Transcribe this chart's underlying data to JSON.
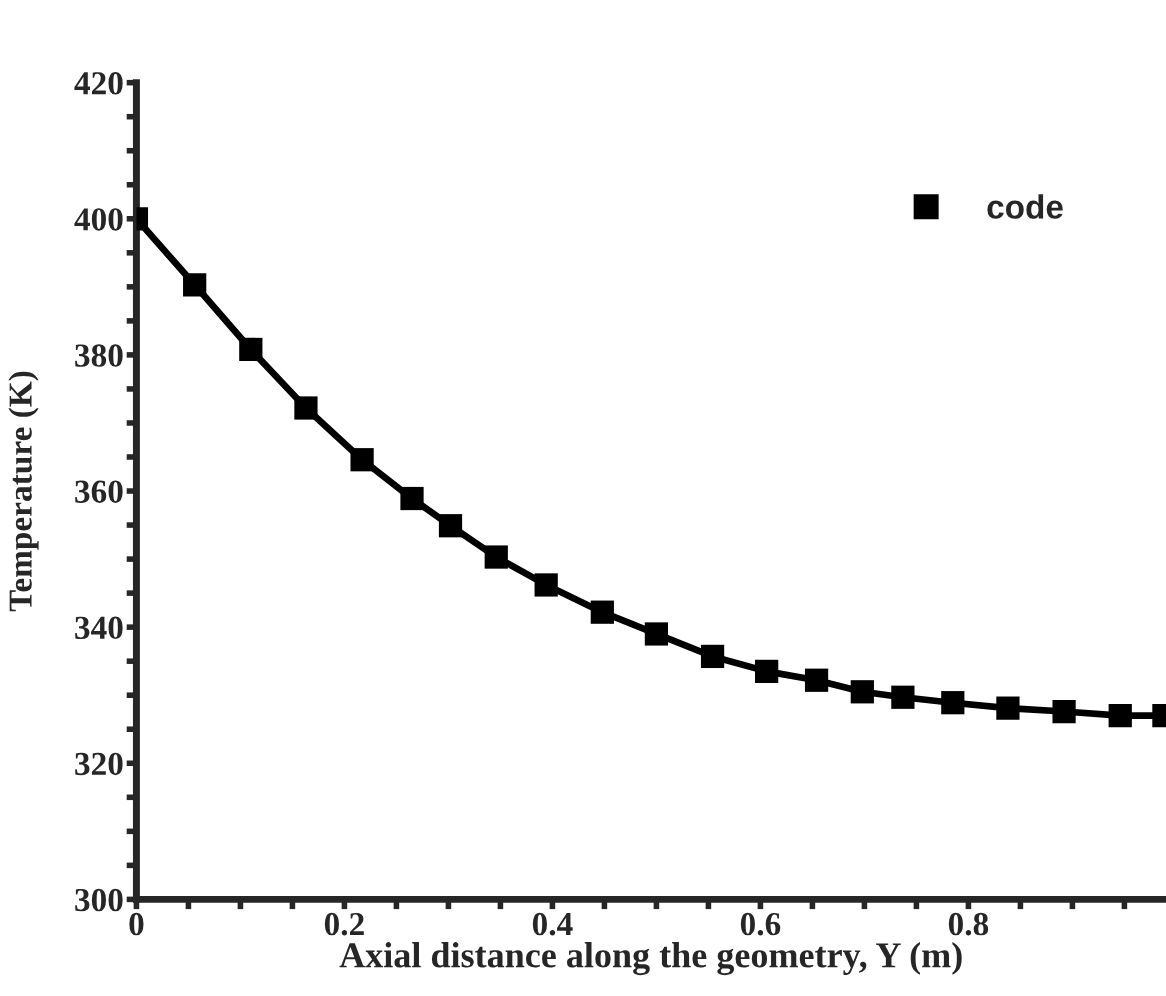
{
  "chart_data": {
    "type": "line",
    "xlabel": "Axial distance along the geometry, Y (m)",
    "ylabel": "Temperature (K)",
    "xlim": [
      0,
      0.99
    ],
    "ylim": [
      300,
      420
    ],
    "xticks": [
      0,
      {
        "value": 0.05,
        "label": null
      },
      {
        "value": 0.1,
        "label": null
      },
      {
        "value": 0.15,
        "label": null
      },
      0.2,
      {
        "value": 0.25,
        "label": null
      },
      {
        "value": 0.3,
        "label": null
      },
      {
        "value": 0.35,
        "label": null
      },
      0.4,
      {
        "value": 0.45,
        "label": null
      },
      {
        "value": 0.5,
        "label": null
      },
      {
        "value": 0.55,
        "label": null
      },
      0.6,
      {
        "value": 0.65,
        "label": null
      },
      {
        "value": 0.7,
        "label": null
      },
      {
        "value": 0.75,
        "label": null
      },
      0.8,
      {
        "value": 0.85,
        "label": null
      },
      {
        "value": 0.9,
        "label": null
      },
      {
        "value": 0.95,
        "label": null
      }
    ],
    "yticks": [
      300,
      {
        "value": 305,
        "label": null
      },
      {
        "value": 310,
        "label": null
      },
      {
        "value": 315,
        "label": null
      },
      320,
      {
        "value": 325,
        "label": null
      },
      {
        "value": 330,
        "label": null
      },
      {
        "value": 335,
        "label": null
      },
      340,
      {
        "value": 345,
        "label": null
      },
      {
        "value": 350,
        "label": null
      },
      {
        "value": 355,
        "label": null
      },
      360,
      {
        "value": 365,
        "label": null
      },
      {
        "value": 370,
        "label": null
      },
      {
        "value": 375,
        "label": null
      },
      380,
      {
        "value": 385,
        "label": null
      },
      {
        "value": 390,
        "label": null
      },
      {
        "value": 395,
        "label": null
      },
      400,
      {
        "value": 405,
        "label": null
      },
      {
        "value": 410,
        "label": null
      },
      {
        "value": 415,
        "label": null
      },
      420
    ],
    "grid": false,
    "legend": "top right",
    "series": [
      {
        "color": "#000000",
        "marker": "none",
        "line_style": "solid",
        "x": [
          0,
          0.056,
          0.11,
          0.163,
          0.217,
          0.265,
          0.302,
          0.346,
          0.394,
          0.448,
          0.5,
          0.554,
          0.606,
          0.654,
          0.698,
          0.737,
          0.785,
          0.838,
          0.892,
          0.946,
          0.99
        ],
        "values": [
          400,
          390.3,
          380.8,
          372.2,
          364.6,
          358.9,
          354.9,
          350.3,
          346.2,
          342.2,
          339,
          335.7,
          333.5,
          332.2,
          330.5,
          329.7,
          328.9,
          328.1,
          327.6,
          327,
          327
        ]
      },
      {
        "type": "scatter",
        "name": "code",
        "color": "#000000",
        "marker": "square",
        "x": [
          0,
          0.056,
          0.11,
          0.163,
          0.217,
          0.265,
          0.302,
          0.346,
          0.394,
          0.448,
          0.5,
          0.554,
          0.606,
          0.654,
          0.698,
          0.737,
          0.785,
          0.838,
          0.892,
          0.946,
          0.988
        ],
        "values": [
          400,
          390.3,
          380.8,
          372.2,
          364.6,
          358.9,
          354.9,
          350.3,
          346.2,
          342.2,
          339,
          335.7,
          333.5,
          332.2,
          330.5,
          329.7,
          328.9,
          328.1,
          327.6,
          327,
          327
        ]
      }
    ]
  }
}
